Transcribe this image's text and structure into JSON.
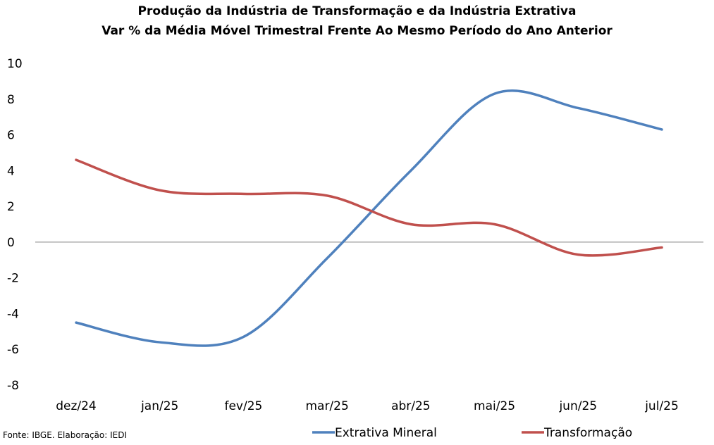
{
  "chart_data": {
    "type": "line",
    "title": "Produção da Indústria de Transformação e da Indústria Extrativa",
    "subtitle": "Var % da Média Móvel Trimestral Frente Ao Mesmo Período do Ano Anterior",
    "categories": [
      "dez/24",
      "jan/25",
      "fev/25",
      "mar/25",
      "abr/25",
      "mai/25",
      "jun/25",
      "jul/25"
    ],
    "ylim": [
      -8,
      10
    ],
    "yticks": [
      "10",
      "8",
      "6",
      "4",
      "2",
      "0",
      "-2",
      "-4",
      "-6",
      "-8"
    ],
    "grid": false,
    "legend_position": "bottom",
    "series": [
      {
        "name": "Extrativa Mineral",
        "color": "#4f81bd",
        "values": [
          -4.5,
          -5.6,
          -5.3,
          -0.9,
          4.0,
          8.3,
          7.5,
          6.3
        ]
      },
      {
        "name": "Transformação",
        "color": "#c0504d",
        "values": [
          4.6,
          2.9,
          2.7,
          2.6,
          1.0,
          1.0,
          -0.7,
          -0.3
        ]
      }
    ]
  },
  "source": "Fonte: IBGE. Elaboração: IEDI"
}
